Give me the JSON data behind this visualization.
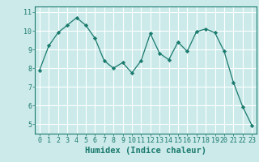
{
  "x": [
    0,
    1,
    2,
    3,
    4,
    5,
    6,
    7,
    8,
    9,
    10,
    11,
    12,
    13,
    14,
    15,
    16,
    17,
    18,
    19,
    20,
    21,
    22,
    23
  ],
  "y": [
    7.9,
    9.2,
    9.9,
    10.3,
    10.7,
    10.3,
    9.6,
    8.4,
    8.0,
    8.3,
    7.75,
    8.4,
    9.85,
    8.8,
    8.45,
    9.4,
    8.9,
    9.95,
    10.1,
    9.9,
    8.9,
    7.25,
    5.95,
    4.95
  ],
  "line_color": "#1a7a6e",
  "marker": "D",
  "marker_size": 2.2,
  "bg_color": "#cceaea",
  "grid_color": "#ffffff",
  "xlabel": "Humidex (Indice chaleur)",
  "ylim": [
    4.5,
    11.3
  ],
  "xlim": [
    -0.5,
    23.5
  ],
  "yticks": [
    5,
    6,
    7,
    8,
    9,
    10,
    11
  ],
  "xticks": [
    0,
    1,
    2,
    3,
    4,
    5,
    6,
    7,
    8,
    9,
    10,
    11,
    12,
    13,
    14,
    15,
    16,
    17,
    18,
    19,
    20,
    21,
    22,
    23
  ],
  "tick_color": "#1a7a6e",
  "label_color": "#1a7a6e",
  "xlabel_fontsize": 7.5,
  "tick_fontsize": 6.0
}
